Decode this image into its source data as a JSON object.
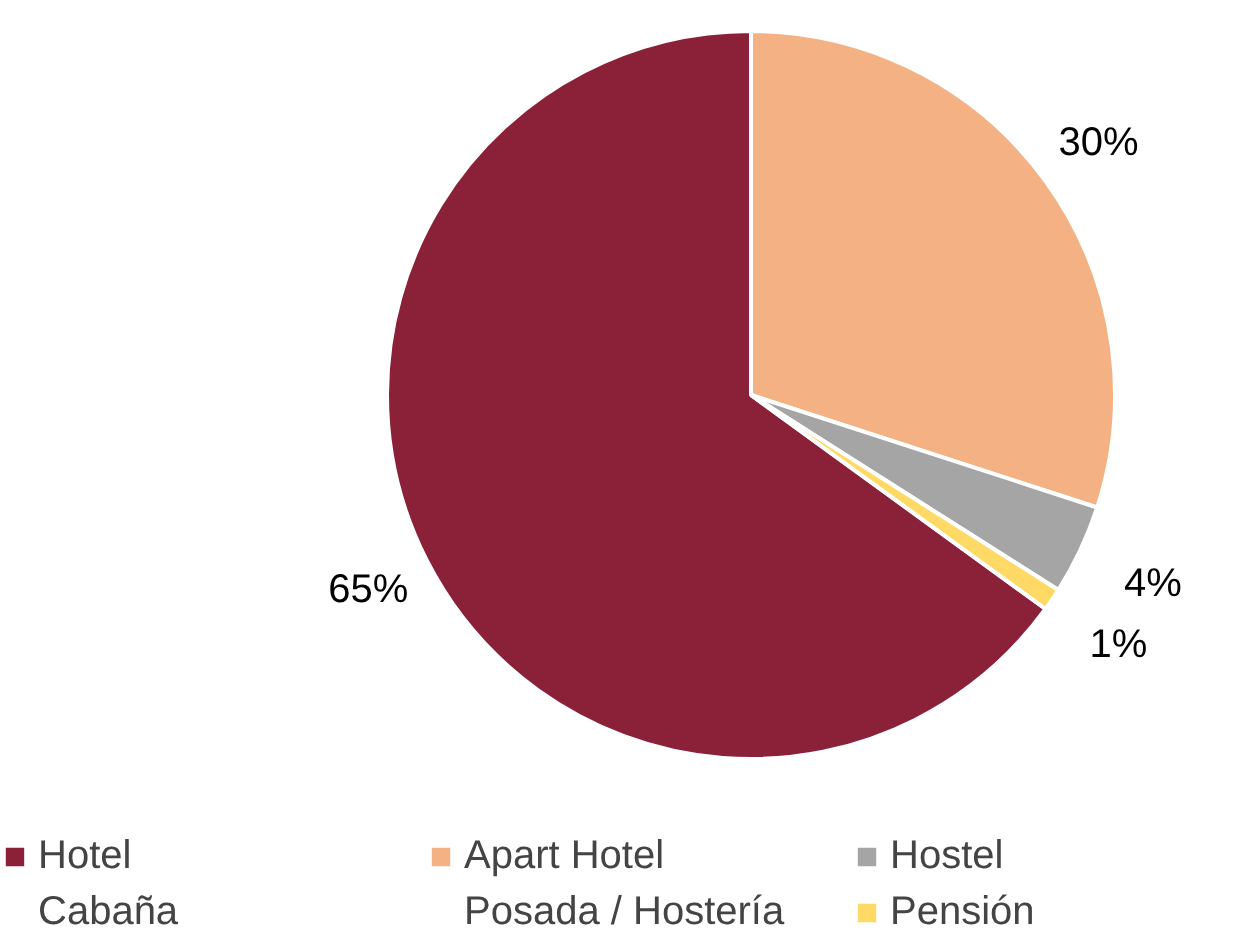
{
  "chart_data": {
    "type": "pie",
    "categories": [
      "Hotel",
      "Apart Hotel",
      "Hostel",
      "Cabaña",
      "Posada / Hostería",
      "Pensión"
    ],
    "values": [
      65,
      30,
      4,
      0,
      0,
      1
    ],
    "colors": [
      "#8b2139",
      "#f4b183",
      "#a5a5a5",
      "#fbe5d6",
      "#ededed",
      "#ffd966"
    ],
    "value_labels": [
      "65%",
      "30%",
      "4%",
      null,
      null,
      "1%"
    ],
    "legend": "bottom"
  }
}
